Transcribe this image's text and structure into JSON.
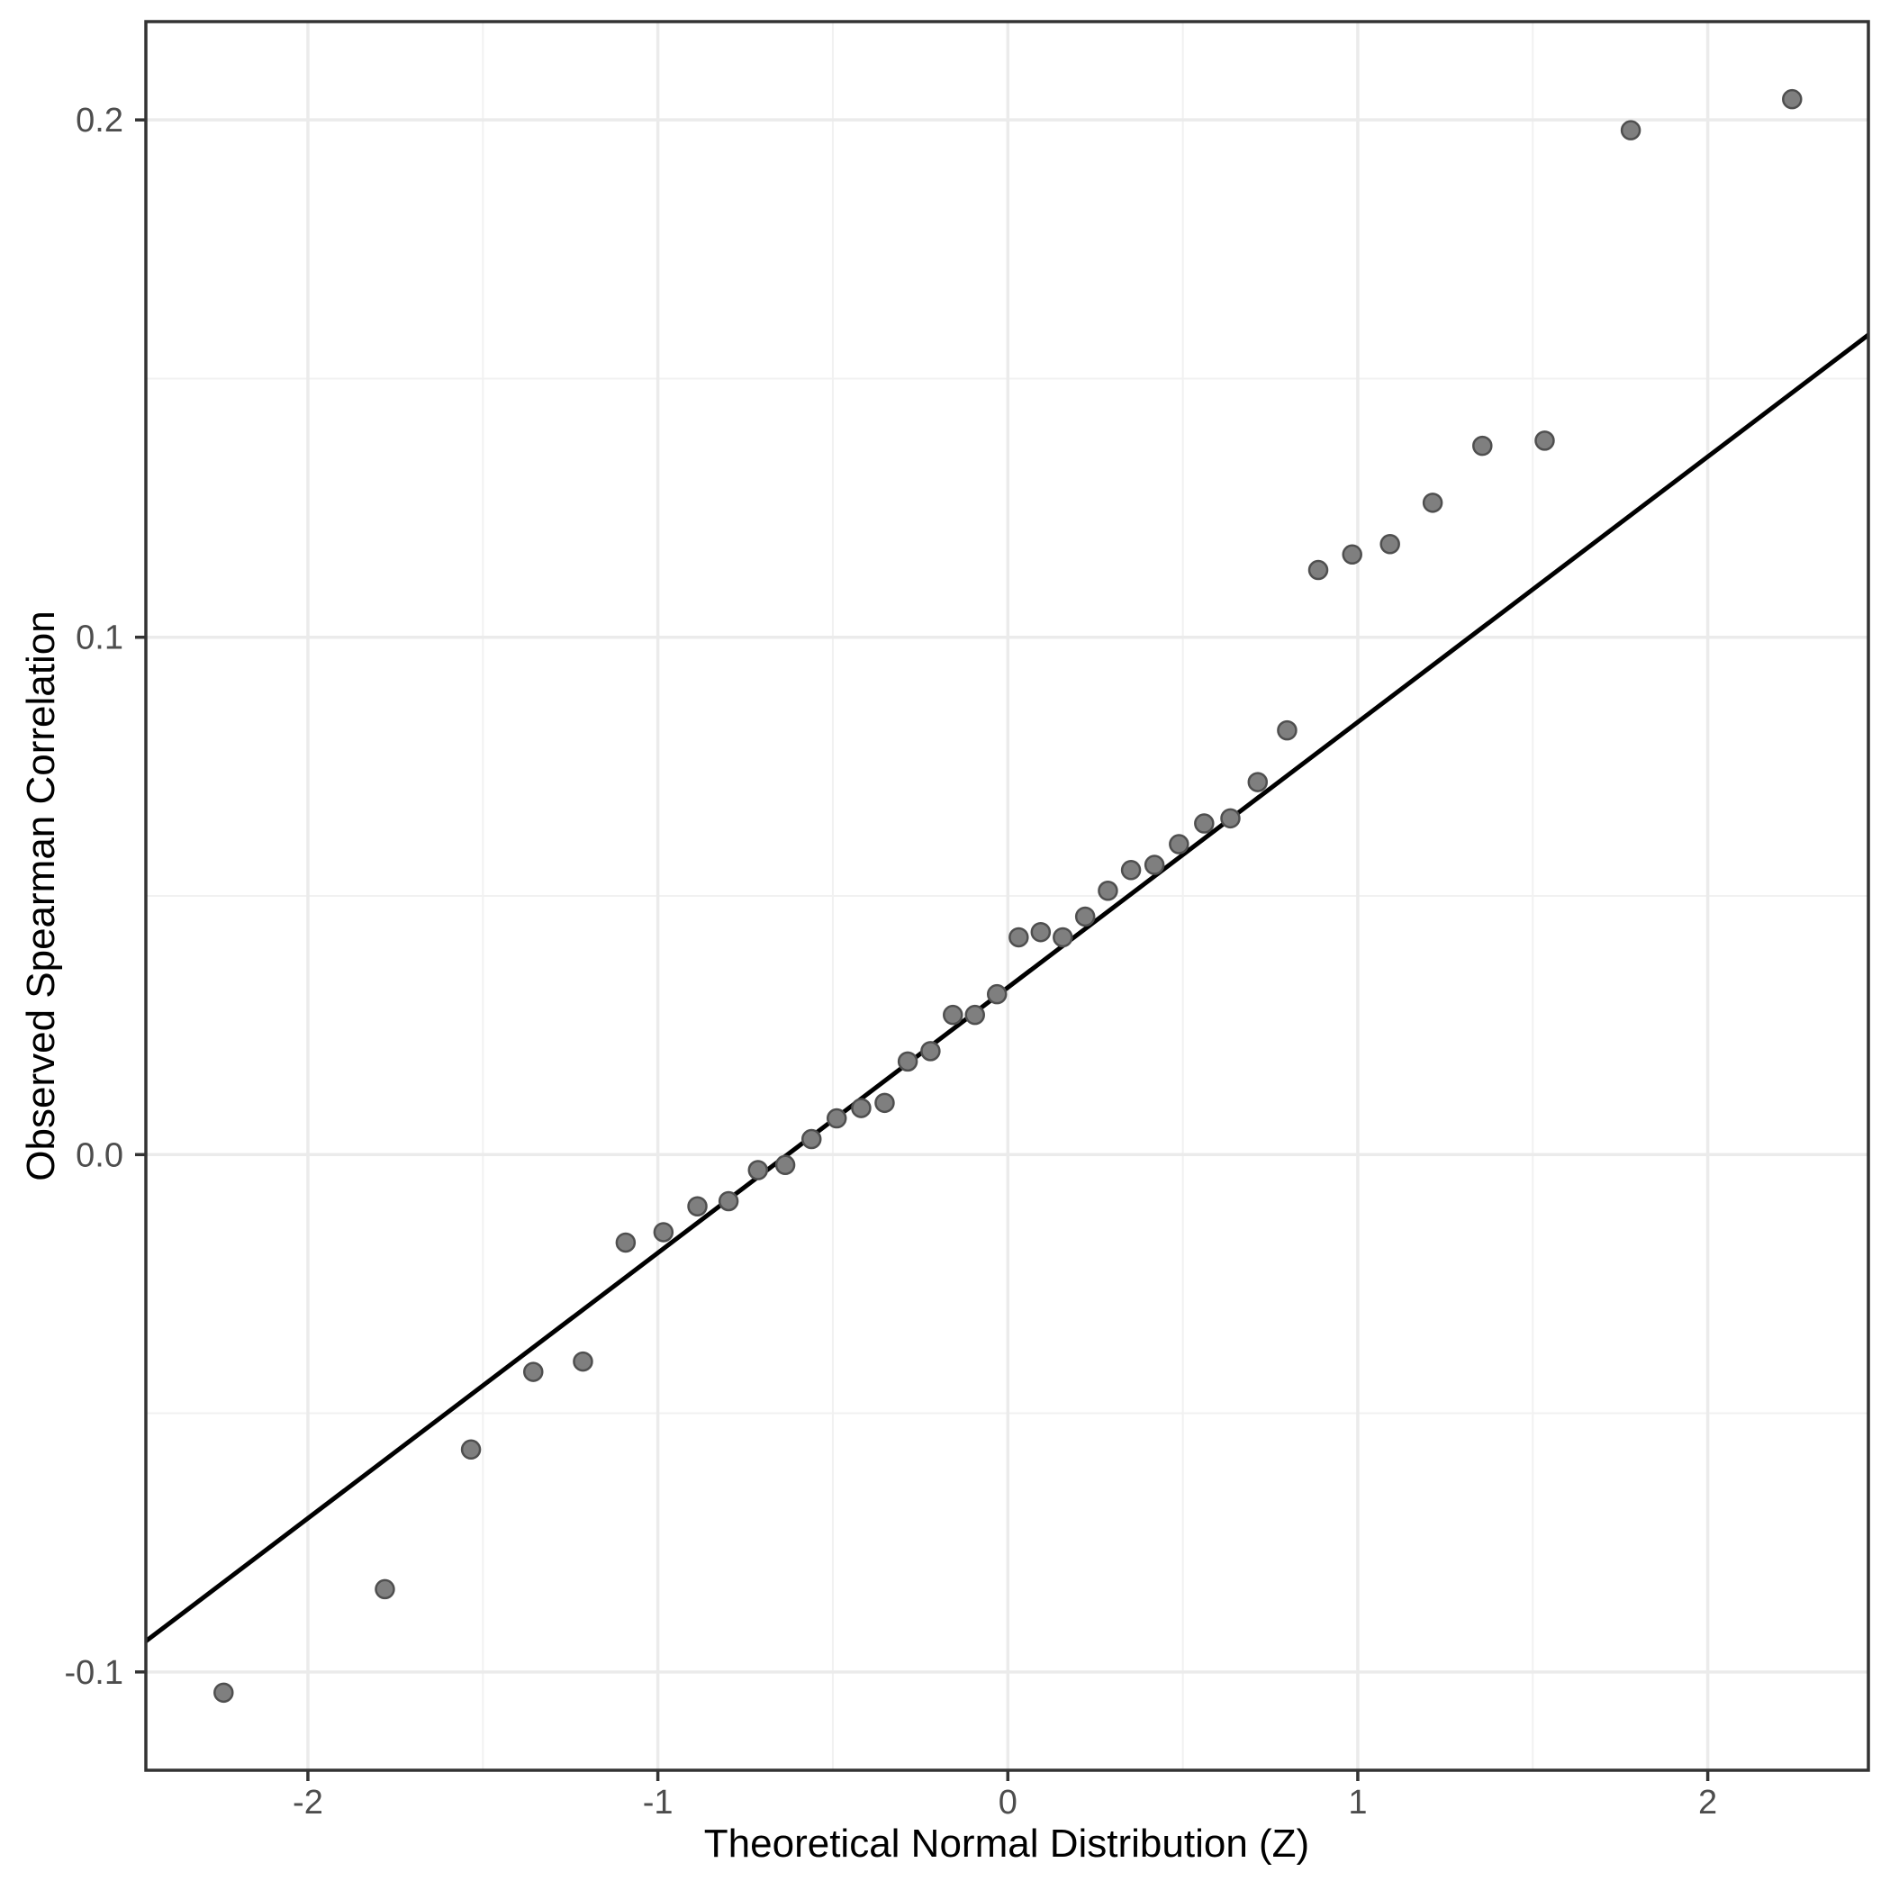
{
  "figure": {
    "background": "#ffffff"
  },
  "chart_data": {
    "type": "scatter",
    "title": "",
    "xlabel": "Theoretical Normal Distribution (Z)",
    "ylabel": "Observed Spearman Correlation",
    "xlim": [
      -2.463,
      2.459
    ],
    "ylim": [
      -0.119,
      0.219
    ],
    "grid": true,
    "legend": "none",
    "x_ticks": [
      {
        "v": -2,
        "label": "-2"
      },
      {
        "v": -1,
        "label": "-1"
      },
      {
        "v": 0,
        "label": "0"
      },
      {
        "v": 1,
        "label": "1"
      },
      {
        "v": 2,
        "label": "2"
      }
    ],
    "y_ticks": [
      {
        "v": -0.1,
        "label": "-0.1"
      },
      {
        "v": 0.0,
        "label": "0.0"
      },
      {
        "v": 0.1,
        "label": "0.1"
      },
      {
        "v": 0.2,
        "label": "0.2"
      }
    ],
    "x_minor": [
      -1.5,
      -0.5,
      0.5,
      1.5
    ],
    "y_minor": [
      -0.05,
      0.05,
      0.15
    ],
    "points": {
      "x": [
        -2.241,
        -1.78,
        -1.534,
        -1.356,
        -1.214,
        -1.092,
        -0.984,
        -0.887,
        -0.798,
        -0.714,
        -0.636,
        -0.561,
        -0.489,
        -0.419,
        -0.352,
        -0.286,
        -0.221,
        -0.157,
        -0.094,
        -0.031,
        0.031,
        0.094,
        0.157,
        0.221,
        0.286,
        0.352,
        0.419,
        0.489,
        0.561,
        0.636,
        0.714,
        0.798,
        0.887,
        0.984,
        1.092,
        1.214,
        1.356,
        1.534,
        1.78,
        2.241
      ],
      "y": [
        -0.104,
        -0.084,
        -0.057,
        -0.042,
        -0.04,
        -0.017,
        -0.015,
        -0.01,
        -0.009,
        -0.003,
        -0.002,
        0.003,
        0.007,
        0.009,
        0.01,
        0.018,
        0.02,
        0.027,
        0.027,
        0.031,
        0.042,
        0.043,
        0.042,
        0.046,
        0.051,
        0.055,
        0.056,
        0.06,
        0.064,
        0.065,
        0.072,
        0.082,
        0.113,
        0.116,
        0.118,
        0.126,
        0.137,
        0.138,
        0.198,
        0.204
      ]
    },
    "ref_line": {
      "slope": 0.0513,
      "intercept": 0.0323
    },
    "style": {
      "point_fill": "#7f7f7f",
      "point_stroke": "#4f4f4f",
      "ref_line_color": "#000000",
      "grid_major_color": "#ebebeb",
      "grid_minor_color": "#f1f1f1",
      "panel_border_color": "#333333",
      "tick_color": "#333333",
      "tick_label_color": "#4d4d4d",
      "axis_title_color": "#000000"
    }
  }
}
